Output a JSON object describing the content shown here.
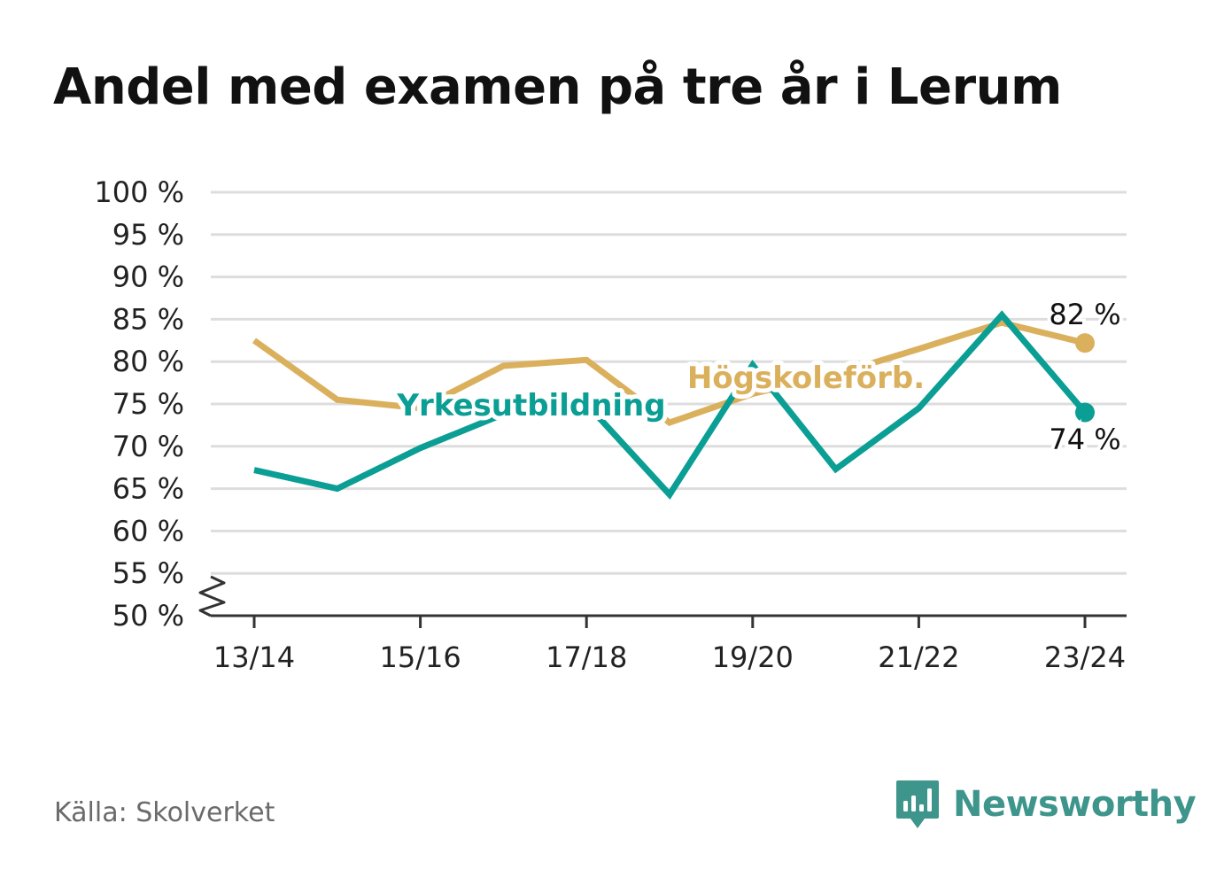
{
  "header": {
    "title": "Andel med examen på tre år i Lerum"
  },
  "footer": {
    "source": "Källa: Skolverket",
    "brand": "Newsworthy"
  },
  "colors": {
    "hogskole": "#dbb05d",
    "yrkes": "#0a9e94",
    "grid": "#dddddd",
    "axis": "#333333",
    "brand": "#3e958b"
  },
  "chart_data": {
    "type": "line",
    "title": "Andel med examen på tre år i Lerum",
    "xlabel": "",
    "ylabel": "",
    "x": [
      "13/14",
      "14/15",
      "15/16",
      "16/17",
      "17/18",
      "18/19",
      "19/20",
      "20/21",
      "21/22",
      "22/23",
      "23/24"
    ],
    "x_tick_labels": [
      "13/14",
      "15/16",
      "17/18",
      "19/20",
      "21/22",
      "23/24"
    ],
    "y_tick_labels": [
      "100 %",
      "95 %",
      "90 %",
      "85 %",
      "80 %",
      "75 %",
      "70 %",
      "65 %",
      "60 %",
      "55 %",
      "50 %"
    ],
    "ylim": [
      50,
      100
    ],
    "y_axis_break": true,
    "grid": true,
    "series": [
      {
        "name": "Högskoleförb.",
        "color": "#dbb05d",
        "values": [
          82.5,
          75.5,
          74.5,
          79.5,
          80.2,
          72.8,
          76.2,
          78.5,
          81.5,
          84.6,
          82.2
        ],
        "end_label": "82 %"
      },
      {
        "name": "Yrkesutbildning",
        "color": "#0a9e94",
        "values": [
          67.2,
          65.0,
          69.8,
          73.8,
          75.0,
          64.3,
          79.6,
          67.3,
          74.5,
          85.5,
          74.0
        ],
        "end_label": "74 %"
      }
    ]
  }
}
